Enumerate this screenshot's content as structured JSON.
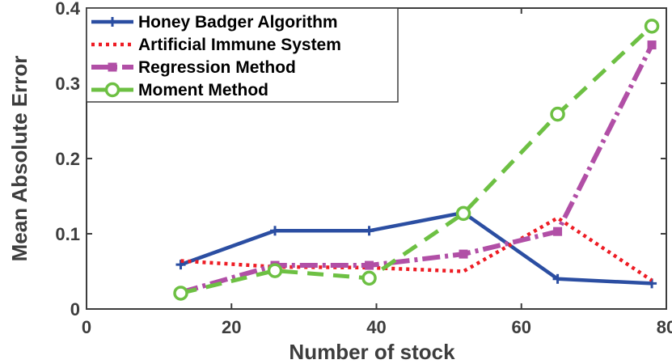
{
  "chart_data": {
    "type": "line",
    "xlabel": "Number of stock",
    "ylabel": "Mean Absolute Error",
    "xlim": [
      0,
      80
    ],
    "ylim": [
      0,
      0.4
    ],
    "xticks": [
      "0",
      "20",
      "40",
      "60",
      "80"
    ],
    "yticks": [
      "0",
      "0.1",
      "0.2",
      "0.3",
      "0.4"
    ],
    "grid": false,
    "legend_position": "top-left",
    "x": [
      13,
      26,
      39,
      52,
      65,
      78
    ],
    "series": [
      {
        "name": "Honey Badger Algorithm",
        "color": "#2b4ea2",
        "values": [
          0.059,
          0.104,
          0.104,
          0.128,
          0.04,
          0.034
        ]
      },
      {
        "name": "Artificial Immune System",
        "color": "#ee1c24",
        "values": [
          0.064,
          0.056,
          0.055,
          0.05,
          0.121,
          0.038
        ]
      },
      {
        "name": "Regression Method",
        "color": "#b14fa6",
        "values": [
          0.022,
          0.058,
          0.058,
          0.073,
          0.103,
          0.351
        ]
      },
      {
        "name": "Moment Method",
        "color": "#6dc043",
        "values": [
          0.021,
          0.051,
          0.041,
          0.127,
          0.259,
          0.376
        ]
      }
    ]
  }
}
